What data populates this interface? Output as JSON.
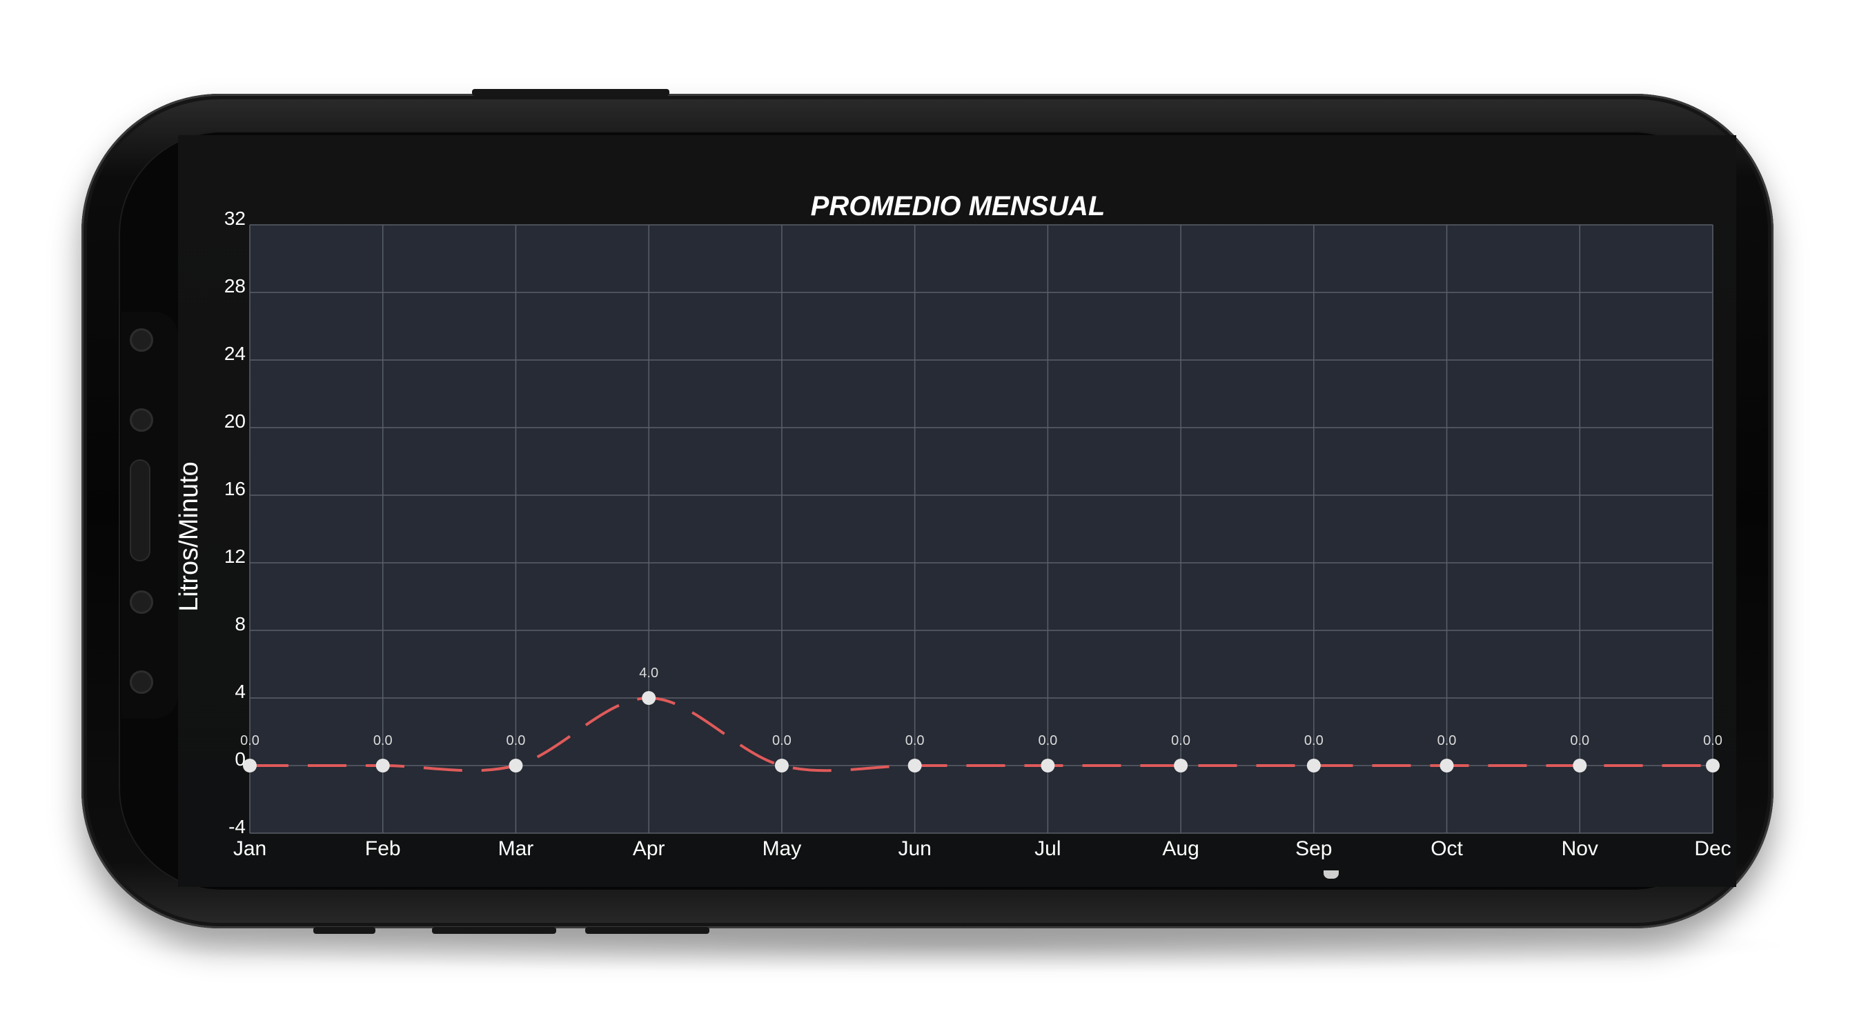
{
  "chart_data": {
    "type": "line",
    "title": "PROMEDIO MENSUAL",
    "xlabel": "",
    "ylabel": "Litros/Minuto",
    "categories": [
      "Jan",
      "Feb",
      "Mar",
      "Apr",
      "May",
      "Jun",
      "Jul",
      "Aug",
      "Sep",
      "Oct",
      "Nov",
      "Dec"
    ],
    "tick_labels": [
      "Jan",
      "Feb",
      "Mar",
      "Apr",
      "May",
      "Jun",
      "Jul",
      "Aug",
      "Sep",
      "Oct",
      "Nov",
      "Dec"
    ],
    "series": [
      {
        "values": [
          0,
          0,
          0,
          4,
          0,
          0,
          0,
          0,
          0,
          0,
          0,
          0
        ],
        "value_labels": [
          "0.0",
          "0.0",
          "0.0",
          "4.0",
          "0.0",
          "0.0",
          "0.0",
          "0.0",
          "0.0",
          "0.0",
          "0.0",
          "0.0"
        ],
        "color": "#e05a5a",
        "style": "dashed, smooth"
      }
    ],
    "ylim": [
      -4,
      32
    ],
    "yticks": [
      "32",
      "28",
      "24",
      "20",
      "16",
      "12",
      "8",
      "4",
      "0",
      "-4"
    ],
    "grid": true,
    "legend": "none",
    "colors": {
      "plot_bg": "#262b35",
      "grid": "#5a5f69",
      "text": "#ffffff",
      "marker": "#e6e6e6"
    }
  }
}
